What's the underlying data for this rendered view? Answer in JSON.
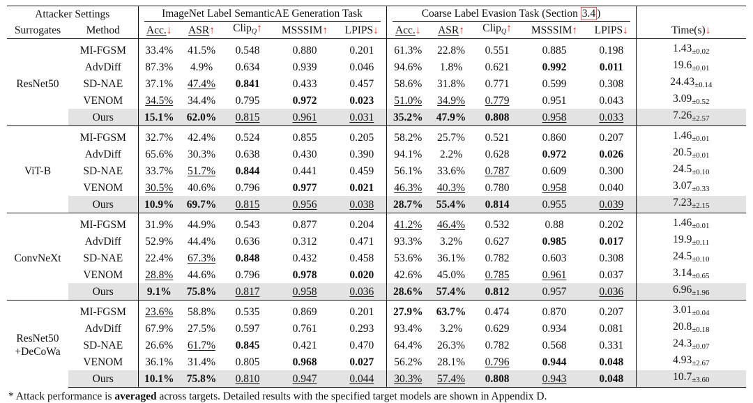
{
  "header": {
    "attacker_settings": "Attacker Settings",
    "task1": "ImageNet Label SemanticAE Generation Task",
    "task2_prefix": "Coarse Label Evasion Task (Section ",
    "task2_ref": "3.4",
    "task2_suffix": ")",
    "surrogates": "Surrogates",
    "method": "Method",
    "acc": "Acc.",
    "asr": "ASR",
    "clip": "Clip",
    "clip_sub": "Q",
    "msssim": "MSSSIM",
    "lpips": "LPIPS",
    "time": "Time(s)",
    "arrow_down": "↓",
    "arrow_up": "↑",
    "colors": {
      "arrow": "#d62718",
      "ours_bg": "#e3e3e3",
      "ref_box": "#e05b5b"
    }
  },
  "groups": [
    {
      "surrogate": "ResNet50",
      "rows": [
        {
          "method": "MI-FGSM",
          "cells": [
            {
              "v": "33.4%"
            },
            {
              "v": "41.5%"
            },
            {
              "v": "0.548"
            },
            {
              "v": "0.880"
            },
            {
              "v": "0.201"
            },
            {
              "v": "61.3%"
            },
            {
              "v": "22.8%"
            },
            {
              "v": "0.551"
            },
            {
              "v": "0.885"
            },
            {
              "v": "0.198"
            },
            {
              "v": "1.43",
              "pm": "±0.02"
            }
          ]
        },
        {
          "method": "AdvDiff",
          "cells": [
            {
              "v": "87.3%"
            },
            {
              "v": "4.9%"
            },
            {
              "v": "0.634"
            },
            {
              "v": "0.939"
            },
            {
              "v": "0.046"
            },
            {
              "v": "94.6%"
            },
            {
              "v": "1.8%"
            },
            {
              "v": "0.621"
            },
            {
              "v": "0.992",
              "b": true
            },
            {
              "v": "0.011",
              "b": true
            },
            {
              "v": "19.6",
              "pm": "±0.01"
            }
          ]
        },
        {
          "method": "SD-NAE",
          "cells": [
            {
              "v": "37.1%"
            },
            {
              "v": "47.4%",
              "u": true
            },
            {
              "v": "0.841",
              "b": true
            },
            {
              "v": "0.433"
            },
            {
              "v": "0.457"
            },
            {
              "v": "58.6%"
            },
            {
              "v": "31.8%"
            },
            {
              "v": "0.771"
            },
            {
              "v": "0.599"
            },
            {
              "v": "0.308"
            },
            {
              "v": "24.43",
              "pm": "±0.14"
            }
          ]
        },
        {
          "method": "VENOM",
          "cells": [
            {
              "v": "34.5%",
              "u": true
            },
            {
              "v": "34.4%"
            },
            {
              "v": "0.795"
            },
            {
              "v": "0.972",
              "b": true
            },
            {
              "v": "0.023",
              "b": true
            },
            {
              "v": "51.0%",
              "u": true
            },
            {
              "v": "34.9%",
              "u": true
            },
            {
              "v": "0.779",
              "u": true
            },
            {
              "v": "0.951"
            },
            {
              "v": "0.043"
            },
            {
              "v": "3.09",
              "pm": "±0.52"
            }
          ]
        },
        {
          "method": "Ours",
          "ours": true,
          "cells": [
            {
              "v": "15.1%",
              "b": true
            },
            {
              "v": "62.0%",
              "b": true
            },
            {
              "v": "0.815",
              "u": true
            },
            {
              "v": "0.961",
              "u": true
            },
            {
              "v": "0.031",
              "u": true
            },
            {
              "v": "35.2%",
              "b": true
            },
            {
              "v": "47.9%",
              "b": true
            },
            {
              "v": "0.808",
              "b": true
            },
            {
              "v": "0.958",
              "u": true
            },
            {
              "v": "0.033",
              "u": true
            },
            {
              "v": "7.26",
              "pm": "±2.57"
            }
          ]
        }
      ]
    },
    {
      "surrogate": "ViT-B",
      "rows": [
        {
          "method": "MI-FGSM",
          "cells": [
            {
              "v": "32.7%"
            },
            {
              "v": "42.4%"
            },
            {
              "v": "0.524"
            },
            {
              "v": "0.855"
            },
            {
              "v": "0.205"
            },
            {
              "v": "58.2%"
            },
            {
              "v": "25.7%"
            },
            {
              "v": "0.521"
            },
            {
              "v": "0.860"
            },
            {
              "v": "0.207"
            },
            {
              "v": "1.46",
              "pm": "±0.01"
            }
          ]
        },
        {
          "method": "AdvDiff",
          "cells": [
            {
              "v": "65.6%"
            },
            {
              "v": "30.3%"
            },
            {
              "v": "0.638"
            },
            {
              "v": "0.430"
            },
            {
              "v": "0.390"
            },
            {
              "v": "94.1%"
            },
            {
              "v": "2.2%"
            },
            {
              "v": "0.628"
            },
            {
              "v": "0.972",
              "b": true
            },
            {
              "v": "0.026",
              "b": true
            },
            {
              "v": "20.5",
              "pm": "±0.01"
            }
          ]
        },
        {
          "method": "SD-NAE",
          "cells": [
            {
              "v": "33.7%"
            },
            {
              "v": "51.7%",
              "u": true
            },
            {
              "v": "0.844",
              "b": true
            },
            {
              "v": "0.441"
            },
            {
              "v": "0.459"
            },
            {
              "v": "56.1%"
            },
            {
              "v": "33.6%"
            },
            {
              "v": "0.787",
              "u": true
            },
            {
              "v": "0.609"
            },
            {
              "v": "0.300"
            },
            {
              "v": "24.5",
              "pm": "±0.10"
            }
          ]
        },
        {
          "method": "VENOM",
          "cells": [
            {
              "v": "30.5%",
              "u": true
            },
            {
              "v": "40.6%"
            },
            {
              "v": "0.796"
            },
            {
              "v": "0.977",
              "b": true
            },
            {
              "v": "0.021",
              "b": true
            },
            {
              "v": "46.3%",
              "u": true
            },
            {
              "v": "40.3%",
              "u": true
            },
            {
              "v": "0.780"
            },
            {
              "v": "0.958",
              "u": true
            },
            {
              "v": "0.040"
            },
            {
              "v": "3.07",
              "pm": "±0.33"
            }
          ]
        },
        {
          "method": "Ours",
          "ours": true,
          "cells": [
            {
              "v": "10.9%",
              "b": true
            },
            {
              "v": "69.7%",
              "b": true
            },
            {
              "v": "0.815",
              "u": true
            },
            {
              "v": "0.956",
              "u": true
            },
            {
              "v": "0.038",
              "u": true
            },
            {
              "v": "28.7%",
              "b": true
            },
            {
              "v": "55.4%",
              "b": true
            },
            {
              "v": "0.814",
              "b": true
            },
            {
              "v": "0.955"
            },
            {
              "v": "0.039",
              "u": true
            },
            {
              "v": "7.23",
              "pm": "±2.15"
            }
          ]
        }
      ]
    },
    {
      "surrogate": "ConvNeXt",
      "rows": [
        {
          "method": "MI-FGSM",
          "cells": [
            {
              "v": "31.9%"
            },
            {
              "v": "44.9%"
            },
            {
              "v": "0.543"
            },
            {
              "v": "0.877"
            },
            {
              "v": "0.204"
            },
            {
              "v": "41.2%",
              "u": true
            },
            {
              "v": "46.4%",
              "u": true
            },
            {
              "v": "0.532"
            },
            {
              "v": "0.88"
            },
            {
              "v": "0.202"
            },
            {
              "v": "1.46",
              "pm": "±0.01"
            }
          ]
        },
        {
          "method": "AdvDiff",
          "cells": [
            {
              "v": "52.9%"
            },
            {
              "v": "44.4%"
            },
            {
              "v": "0.636"
            },
            {
              "v": "0.312"
            },
            {
              "v": "0.471"
            },
            {
              "v": "93.3%"
            },
            {
              "v": "3.2%"
            },
            {
              "v": "0.627"
            },
            {
              "v": "0.985",
              "b": true
            },
            {
              "v": "0.017",
              "b": true
            },
            {
              "v": "19.9",
              "pm": "±0.11"
            }
          ]
        },
        {
          "method": "SD-NAE",
          "cells": [
            {
              "v": "22.4%"
            },
            {
              "v": "67.3%",
              "u": true
            },
            {
              "v": "0.848",
              "b": true
            },
            {
              "v": "0.432"
            },
            {
              "v": "0.458"
            },
            {
              "v": "53.6%"
            },
            {
              "v": "36.1%"
            },
            {
              "v": "0.782"
            },
            {
              "v": "0.603"
            },
            {
              "v": "0.308"
            },
            {
              "v": "24.5",
              "pm": "±0.10"
            }
          ]
        },
        {
          "method": "VENOM",
          "cells": [
            {
              "v": "28.8%",
              "u": true
            },
            {
              "v": "44.6%"
            },
            {
              "v": "0.796"
            },
            {
              "v": "0.978",
              "b": true
            },
            {
              "v": "0.020",
              "b": true
            },
            {
              "v": "42.6%"
            },
            {
              "v": "45.0%"
            },
            {
              "v": "0.785",
              "u": true
            },
            {
              "v": "0.961",
              "u": true
            },
            {
              "v": "0.037"
            },
            {
              "v": "3.14",
              "pm": "±0.65"
            }
          ]
        },
        {
          "method": "Ours",
          "ours": true,
          "cells": [
            {
              "v": "9.1%",
              "b": true
            },
            {
              "v": "75.8%",
              "b": true
            },
            {
              "v": "0.817",
              "u": true
            },
            {
              "v": "0.958",
              "u": true
            },
            {
              "v": "0.036",
              "u": true
            },
            {
              "v": "28.6%",
              "b": true
            },
            {
              "v": "57.4%",
              "b": true
            },
            {
              "v": "0.812",
              "b": true
            },
            {
              "v": "0.957"
            },
            {
              "v": "0.036",
              "u": true
            },
            {
              "v": "6.96",
              "pm": "±1.96"
            }
          ]
        }
      ]
    },
    {
      "surrogate": "ResNet50\n+DeCoWa",
      "rows": [
        {
          "method": "MI-FGSM",
          "cells": [
            {
              "v": "23.6%",
              "u": true
            },
            {
              "v": "58.8%"
            },
            {
              "v": "0.535"
            },
            {
              "v": "0.869"
            },
            {
              "v": "0.201"
            },
            {
              "v": "27.9%",
              "b": true
            },
            {
              "v": "63.7%",
              "b": true
            },
            {
              "v": "0.474"
            },
            {
              "v": "0.870"
            },
            {
              "v": "0.207"
            },
            {
              "v": "3.01",
              "pm": "±0.04"
            }
          ]
        },
        {
          "method": "AdvDiff",
          "cells": [
            {
              "v": "67.9%"
            },
            {
              "v": "27.5%"
            },
            {
              "v": "0.597"
            },
            {
              "v": "0.761"
            },
            {
              "v": "0.293"
            },
            {
              "v": "93.4%"
            },
            {
              "v": "3.2%"
            },
            {
              "v": "0.629"
            },
            {
              "v": "0.934"
            },
            {
              "v": "0.081"
            },
            {
              "v": "20.8",
              "pm": "±0.18"
            }
          ]
        },
        {
          "method": "SD-NAE",
          "cells": [
            {
              "v": "26.6%"
            },
            {
              "v": "61.7%",
              "u": true
            },
            {
              "v": "0.845",
              "b": true
            },
            {
              "v": "0.421"
            },
            {
              "v": "0.470"
            },
            {
              "v": "64.4%"
            },
            {
              "v": "26.3%"
            },
            {
              "v": "0.782"
            },
            {
              "v": "0.568"
            },
            {
              "v": "0.331"
            },
            {
              "v": "24.3",
              "pm": "±0.07"
            }
          ]
        },
        {
          "method": "VENOM",
          "cells": [
            {
              "v": "36.1%"
            },
            {
              "v": "31.4%"
            },
            {
              "v": "0.805"
            },
            {
              "v": "0.968",
              "b": true
            },
            {
              "v": "0.027",
              "b": true
            },
            {
              "v": "56.2%"
            },
            {
              "v": "28.1%"
            },
            {
              "v": "0.796",
              "u": true
            },
            {
              "v": "0.944",
              "b": true
            },
            {
              "v": "0.048",
              "b": true
            },
            {
              "v": "4.93",
              "pm": "±2.67"
            }
          ]
        },
        {
          "method": "Ours",
          "ours": true,
          "cells": [
            {
              "v": "10.1%",
              "b": true
            },
            {
              "v": "75.8%",
              "b": true
            },
            {
              "v": "0.810",
              "u": true
            },
            {
              "v": "0.947",
              "u": true
            },
            {
              "v": "0.044",
              "u": true
            },
            {
              "v": "30.3%",
              "u": true
            },
            {
              "v": "57.4%",
              "u": true
            },
            {
              "v": "0.808",
              "b": true
            },
            {
              "v": "0.943",
              "u": true
            },
            {
              "v": "0.048",
              "b": true
            },
            {
              "v": "10.7",
              "pm": "±3.60"
            }
          ]
        }
      ]
    }
  ],
  "footnote": {
    "prefix": "* Attack performance is ",
    "bold": "averaged",
    "suffix": " across targets. Detailed results with the specified target models are shown in Appendix D."
  }
}
